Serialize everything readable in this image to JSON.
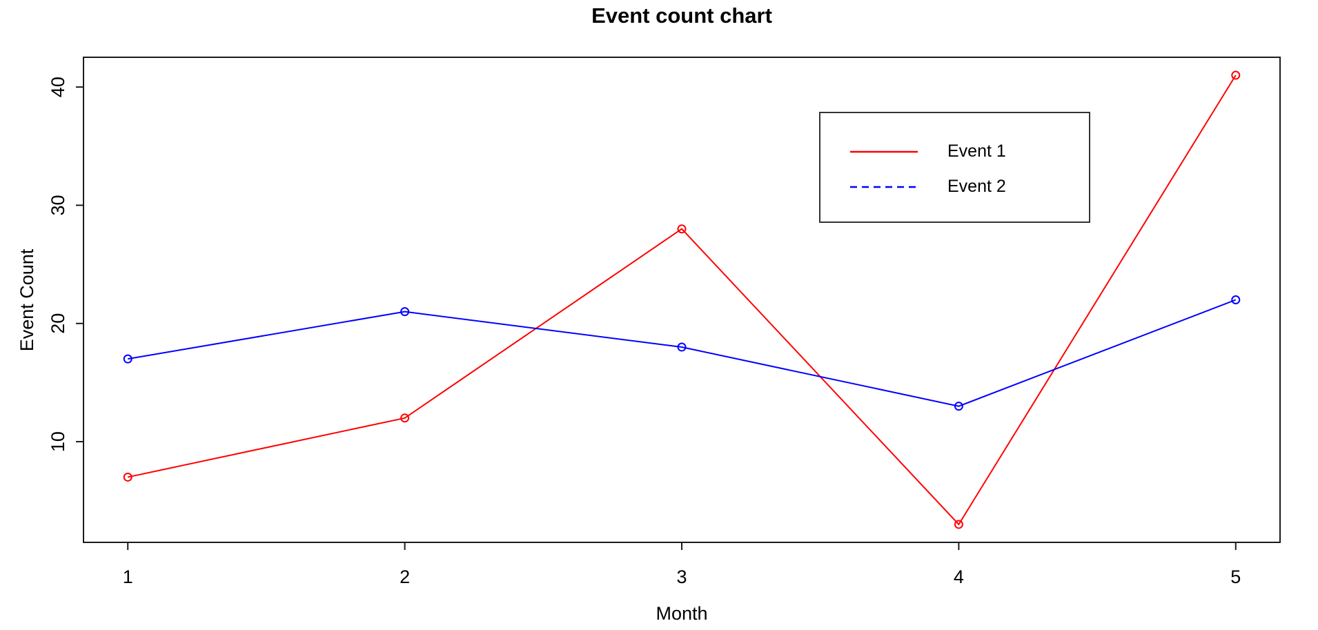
{
  "page": {
    "background": "#ffffff",
    "text_color": "#000000"
  },
  "chart_data": {
    "type": "line",
    "title": "Event count chart",
    "xlabel": "Month",
    "ylabel": "Event Count",
    "x": [
      1,
      2,
      3,
      4,
      5
    ],
    "series": [
      {
        "name": "Event 1",
        "values": [
          7,
          12,
          28,
          3,
          41
        ],
        "color": "#ff0000",
        "plot_line_style": "solid",
        "legend_line_style": "solid",
        "marker": "open-circle"
      },
      {
        "name": "Event 2",
        "values": [
          17,
          21,
          18,
          13,
          22
        ],
        "color": "#0000ff",
        "plot_line_style": "solid",
        "legend_line_style": "dashed",
        "marker": "open-circle"
      }
    ],
    "x_ticks": [
      1,
      2,
      3,
      4,
      5
    ],
    "y_ticks": [
      10,
      20,
      30,
      40
    ],
    "xlim": [
      0.84,
      5.16
    ],
    "ylim": [
      1.48,
      42.52
    ],
    "grid": false,
    "legend": {
      "position": "top-right",
      "entries": [
        "Event 1",
        "Event 2"
      ]
    }
  }
}
